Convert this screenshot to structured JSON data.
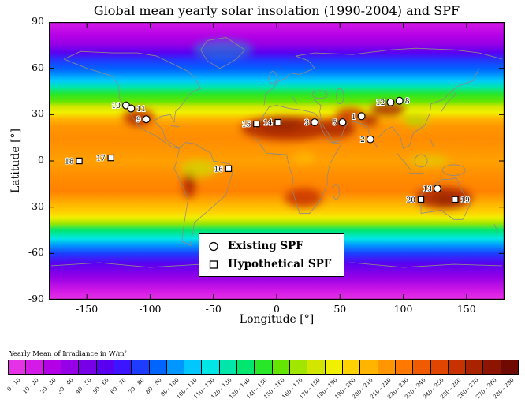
{
  "title": "Global mean yearly solar insolation (1990-2004) and SPF",
  "axes": {
    "xlabel": "Longitude [°]",
    "ylabel": "Latitude [°]",
    "xticks": [
      -150,
      -100,
      -50,
      0,
      50,
      100,
      150
    ],
    "yticks": [
      90,
      60,
      30,
      0,
      -30,
      -60,
      -90
    ]
  },
  "legend": {
    "items": [
      {
        "marker": "circle",
        "label": "Existing SPF"
      },
      {
        "marker": "square",
        "label": "Hypothetical SPF"
      }
    ]
  },
  "colorbar": {
    "title": "Yearly Mean of Irradiance in W/m²",
    "bins": [
      "0 - 10",
      "10 - 20",
      "20 - 30",
      "30 - 40",
      "40 - 50",
      "50 - 60",
      "60 - 70",
      "70 - 80",
      "80 - 90",
      "90 - 100",
      "100 - 110",
      "110 - 120",
      "120 - 130",
      "130 - 140",
      "140 - 150",
      "150 - 160",
      "160 - 170",
      "170 - 180",
      "180 - 190",
      "190 - 200",
      "200 - 210",
      "210 - 220",
      "220 - 230",
      "230 - 240",
      "240 - 250",
      "250 - 260",
      "260 - 270",
      "270 - 280",
      "280 - 290"
    ],
    "colors": [
      "#e632e6",
      "#d41ae6",
      "#b400e6",
      "#9600e6",
      "#7800e6",
      "#5a00f0",
      "#3c14ff",
      "#1e3cff",
      "#0064ff",
      "#0096ff",
      "#00c8ff",
      "#00e6e6",
      "#00e6aa",
      "#00e66e",
      "#28e628",
      "#64e600",
      "#a0e600",
      "#d2e600",
      "#f0f000",
      "#ffd200",
      "#ffb400",
      "#ff9600",
      "#ff7800",
      "#f05a00",
      "#e14600",
      "#c83200",
      "#aa2300",
      "#8c1400",
      "#6e0a00"
    ]
  },
  "chart_data": {
    "type": "heatmap",
    "title": "Global mean yearly solar insolation (1990-2004) and SPF",
    "xlabel": "Longitude [°]",
    "ylabel": "Latitude [°]",
    "xlim": [
      -180,
      180
    ],
    "ylim": [
      -90,
      90
    ],
    "projection": "equirectangular",
    "units": "W/m²",
    "value_range": [
      0,
      290
    ],
    "zonal_mean_estimate": [
      {
        "lat": 90,
        "value": 15
      },
      {
        "lat": 75,
        "value": 35
      },
      {
        "lat": 60,
        "value": 80
      },
      {
        "lat": 50,
        "value": 115
      },
      {
        "lat": 40,
        "value": 150
      },
      {
        "lat": 32,
        "value": 185
      },
      {
        "lat": 25,
        "value": 210
      },
      {
        "lat": 20,
        "value": 225
      },
      {
        "lat": 10,
        "value": 220
      },
      {
        "lat": 0,
        "value": 210
      },
      {
        "lat": -10,
        "value": 220
      },
      {
        "lat": -20,
        "value": 232
      },
      {
        "lat": -27,
        "value": 222
      },
      {
        "lat": -35,
        "value": 190
      },
      {
        "lat": -45,
        "value": 135
      },
      {
        "lat": -55,
        "value": 95
      },
      {
        "lat": -65,
        "value": 58
      },
      {
        "lat": -75,
        "value": 30
      },
      {
        "lat": -90,
        "value": 12
      }
    ],
    "sites": [
      {
        "id": 1,
        "type": "existing",
        "lon": 67,
        "lat": 29,
        "label_side": "left"
      },
      {
        "id": 2,
        "type": "existing",
        "lon": 74,
        "lat": 14,
        "label_side": "left"
      },
      {
        "id": 3,
        "type": "existing",
        "lon": 30,
        "lat": 25,
        "label_side": "left"
      },
      {
        "id": 5,
        "type": "existing",
        "lon": 52,
        "lat": 25,
        "label_side": "left"
      },
      {
        "id": 8,
        "type": "existing",
        "lon": 97,
        "lat": 39,
        "label_side": "right"
      },
      {
        "id": 9,
        "type": "existing",
        "lon": -103,
        "lat": 27,
        "label_side": "left"
      },
      {
        "id": 10,
        "type": "existing",
        "lon": -119,
        "lat": 36,
        "label_side": "left"
      },
      {
        "id": 11,
        "type": "existing",
        "lon": -115,
        "lat": 34,
        "label_side": "right"
      },
      {
        "id": 12,
        "type": "existing",
        "lon": 90,
        "lat": 38,
        "label_side": "left"
      },
      {
        "id": 13,
        "type": "existing",
        "lon": 127,
        "lat": -18,
        "label_side": "left"
      },
      {
        "id": 14,
        "type": "hypothetical",
        "lon": 1,
        "lat": 25,
        "label_side": "left"
      },
      {
        "id": 15,
        "type": "hypothetical",
        "lon": -16,
        "lat": 24,
        "label_side": "left"
      },
      {
        "id": 16,
        "type": "hypothetical",
        "lon": -38,
        "lat": -5,
        "label_side": "left"
      },
      {
        "id": 17,
        "type": "hypothetical",
        "lon": -131,
        "lat": 2,
        "label_side": "left"
      },
      {
        "id": 18,
        "type": "hypothetical",
        "lon": -156,
        "lat": 0,
        "label_side": "left"
      },
      {
        "id": 19,
        "type": "hypothetical",
        "lon": 141,
        "lat": -25,
        "label_side": "right"
      },
      {
        "id": 20,
        "type": "hypothetical",
        "lon": 114,
        "lat": -25,
        "label_side": "left"
      }
    ],
    "legend": [
      {
        "marker": "circle",
        "label": "Existing SPF"
      },
      {
        "marker": "square",
        "label": "Hypothetical SPF"
      }
    ],
    "colorbar_title": "Yearly Mean of Irradiance in W/m²"
  }
}
